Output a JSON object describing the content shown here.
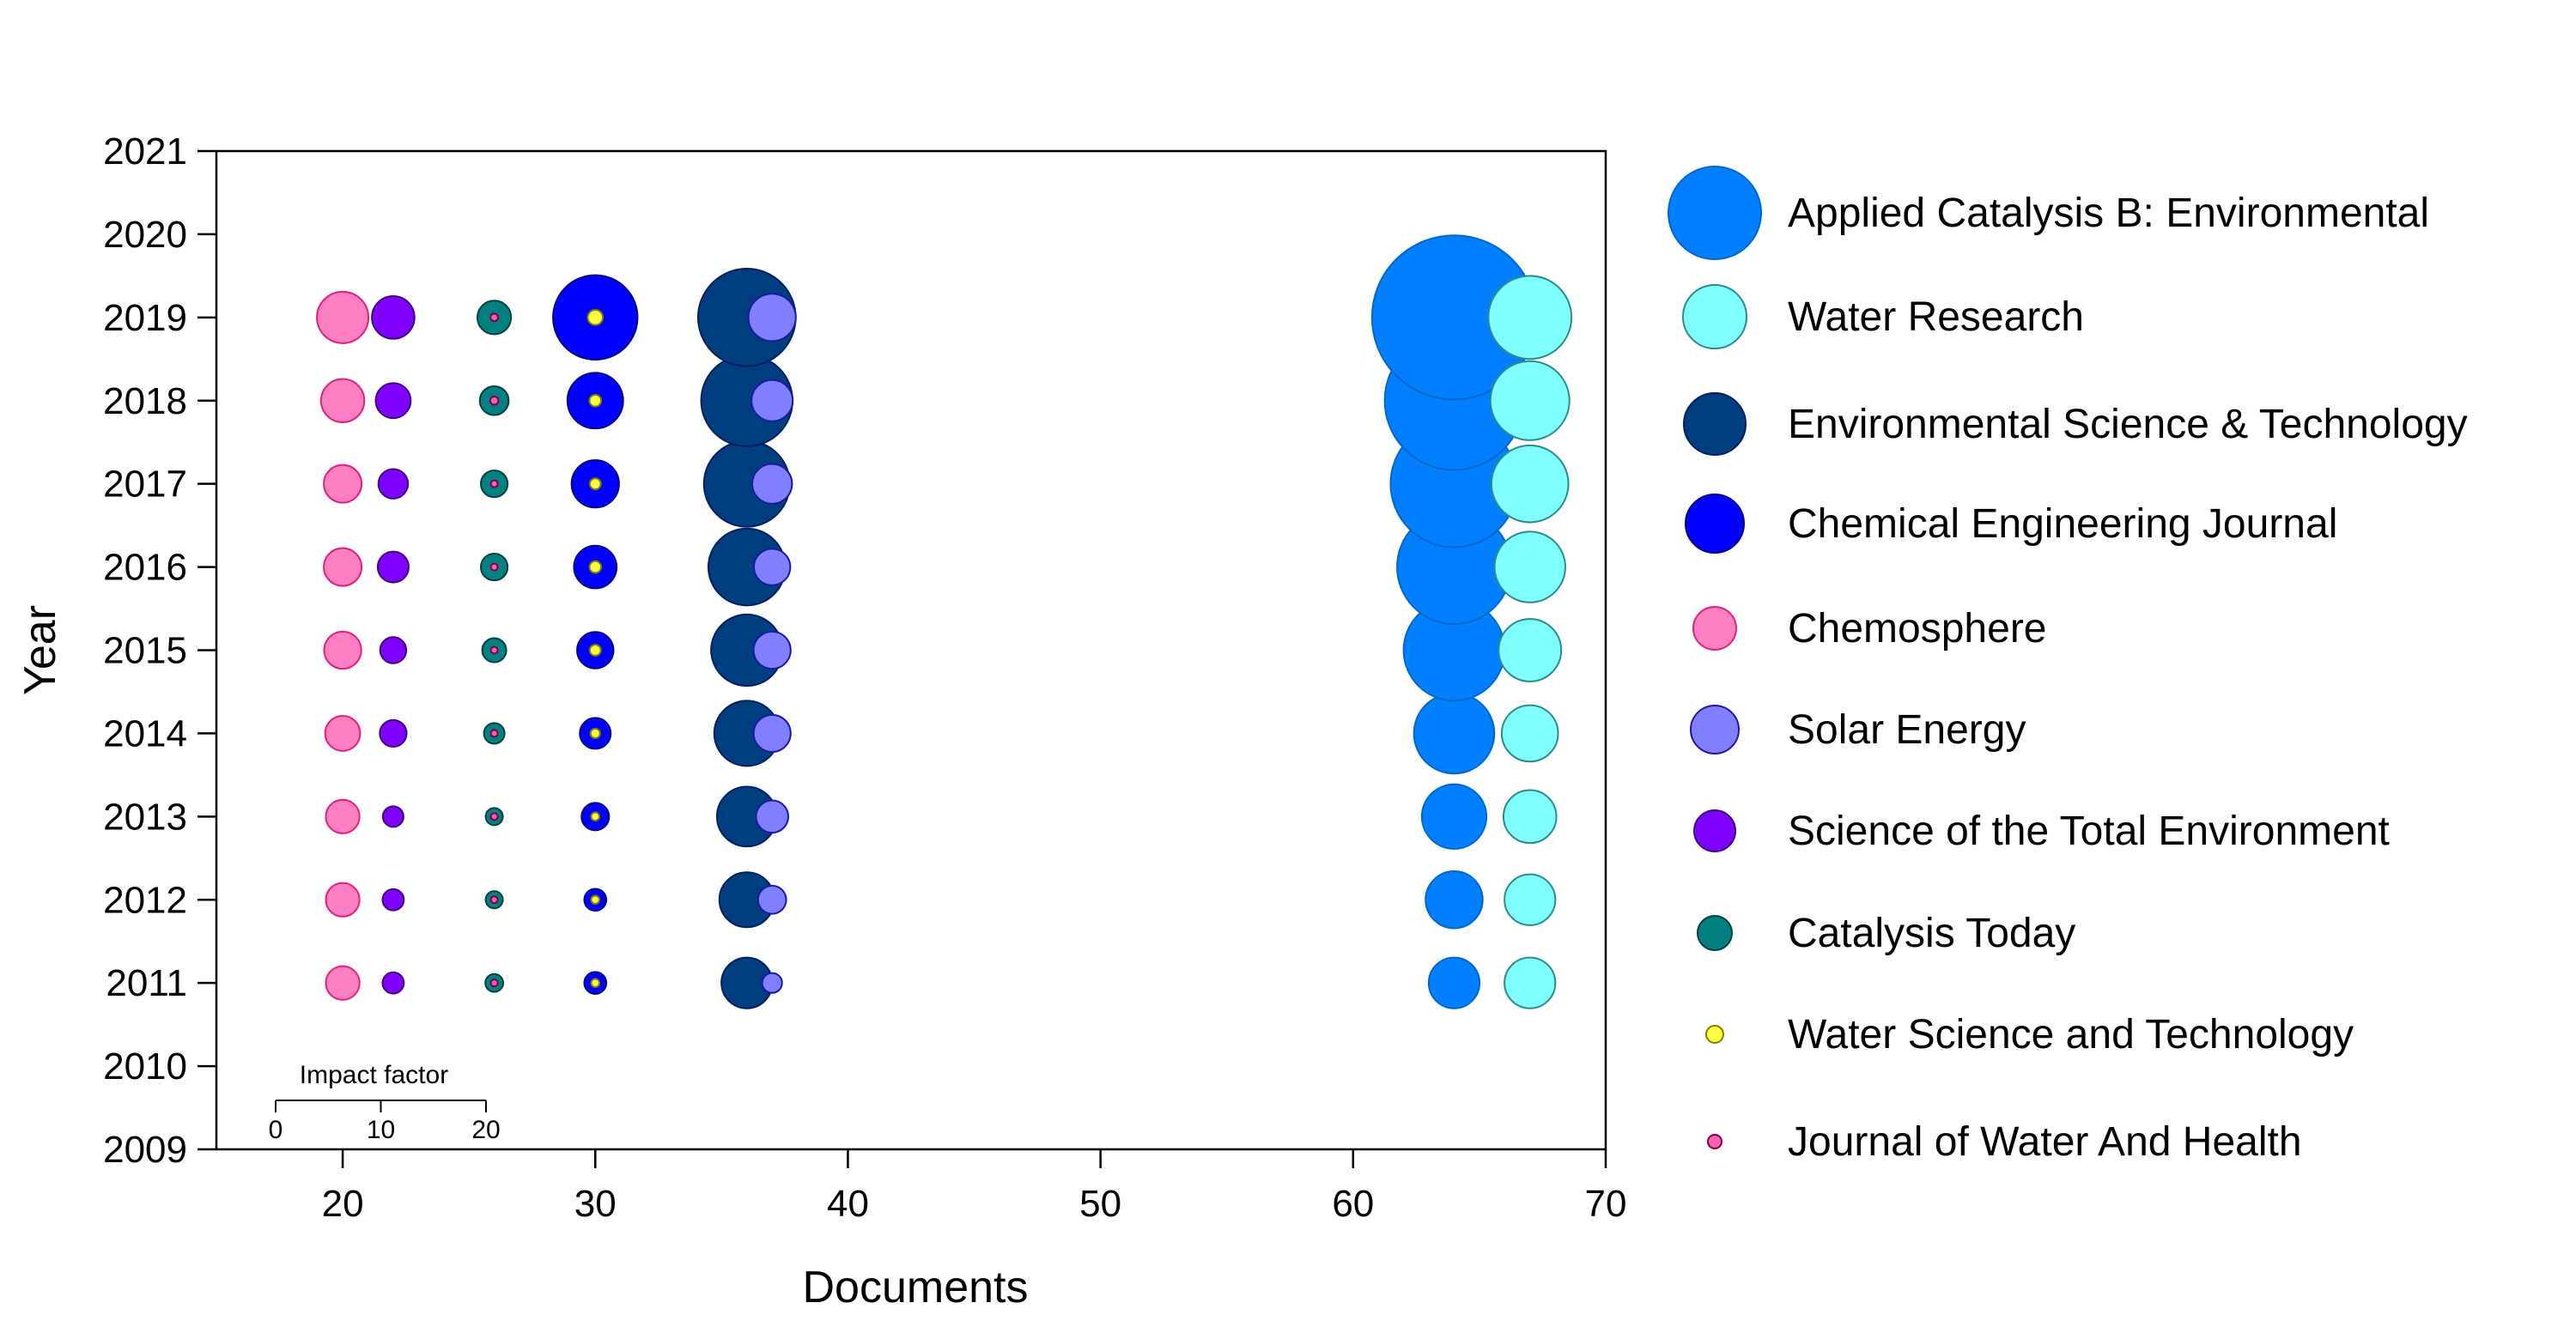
{
  "chart_data": {
    "type": "bubble",
    "xlabel": "Documents",
    "ylabel": "Year",
    "xlim": [
      15,
      70
    ],
    "ylim": [
      2009,
      2021
    ],
    "x_ticks": [
      "20",
      "30",
      "40",
      "50",
      "60",
      "70"
    ],
    "y_ticks": [
      "2009",
      "2010",
      "2011",
      "2012",
      "2013",
      "2014",
      "2015",
      "2016",
      "2017",
      "2018",
      "2019",
      "2020",
      "2021"
    ],
    "grid": false,
    "legend_position": "right",
    "years": [
      2011,
      2012,
      2013,
      2014,
      2015,
      2016,
      2017,
      2018,
      2019
    ],
    "size_key": {
      "label": "Impact factor",
      "ticks": [
        "0",
        "10",
        "20"
      ],
      "max": 20
    },
    "series": [
      {
        "name": "Applied Catalysis B: Environmental",
        "x": 64,
        "fill": "#0080FF",
        "stroke": "#0066CC",
        "values": [
          7.4,
          8.3,
          9.4,
          11.7,
          14.7,
          16.6,
          18.5,
          20.2,
          23.9
        ]
      },
      {
        "name": "Water Research",
        "x": 67,
        "fill": "#80FFFF",
        "stroke": "#2E8B8B",
        "values": [
          7.4,
          7.4,
          7.7,
          8.2,
          9.1,
          10.3,
          11.2,
          11.5,
          12.1
        ]
      },
      {
        "name": "Environmental Science & Technology",
        "x": 36,
        "fill": "#003F7F",
        "stroke": "#001F5F",
        "values": [
          7.4,
          8.0,
          8.7,
          9.5,
          10.4,
          11.2,
          12.5,
          13.3,
          14.2
        ]
      },
      {
        "name": "Chemical Engineering Journal",
        "x": 30,
        "fill": "#0000FF",
        "stroke": "#000080",
        "values": [
          3.2,
          3.2,
          4.0,
          4.5,
          5.3,
          6.2,
          6.9,
          8.1,
          12.3
        ]
      },
      {
        "name": "Chemosphere",
        "x": 20,
        "fill": "#FF80C0",
        "stroke": "#E0207F",
        "values": [
          4.9,
          4.9,
          4.9,
          5.1,
          5.4,
          5.5,
          5.5,
          6.3,
          7.5
        ]
      },
      {
        "name": "Solar Energy",
        "x": 37,
        "fill": "#8080FF",
        "stroke": "#1A1A9F",
        "values": [
          2.9,
          4.1,
          4.7,
          5.4,
          5.4,
          5.3,
          5.8,
          6.0,
          6.9
        ]
      },
      {
        "name": "Science of the Total Environment",
        "x": 22,
        "fill": "#8000FF",
        "stroke": "#400080",
        "values": [
          3.1,
          3.1,
          3.0,
          3.9,
          3.8,
          4.5,
          4.3,
          5.1,
          6.2
        ]
      },
      {
        "name": "Catalysis Today",
        "x": 26,
        "fill": "#008080",
        "stroke": "#004040",
        "values": [
          2.6,
          2.5,
          2.5,
          3.0,
          3.5,
          3.9,
          3.9,
          4.2,
          4.9
        ]
      },
      {
        "name": "Water Science and Technology",
        "x": 30,
        "fill": "#FFFF40",
        "stroke": "#808000",
        "values": [
          1.2,
          1.2,
          1.2,
          1.4,
          1.6,
          1.7,
          1.6,
          1.7,
          2.2
        ]
      },
      {
        "name": "Journal of Water And Health",
        "x": 26,
        "fill": "#FF60B0",
        "stroke": "#800040",
        "values": [
          1.0,
          1.0,
          1.0,
          1.0,
          1.0,
          1.0,
          1.0,
          1.2,
          1.1
        ]
      }
    ]
  }
}
